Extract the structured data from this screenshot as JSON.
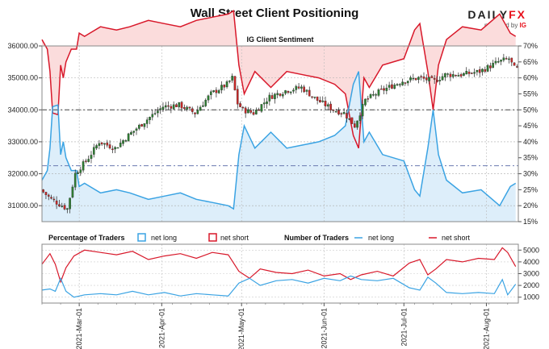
{
  "header": {
    "title": "Wall Street Client Positioning",
    "brand_prefix": "DAILY",
    "brand_suffix": "FX",
    "provided_by": "provided by",
    "provided_by_brand": "IG"
  },
  "chart_data": [
    {
      "type": "candlestick",
      "title": "IG Client Sentiment",
      "y_left_ticks": [
        "31000.00",
        "32000.00",
        "33000.00",
        "34000.00",
        "35000.00",
        "36000.00"
      ],
      "ylim_left": [
        30500,
        36000
      ],
      "y_right_ticks": [
        "15%",
        "20%",
        "25%",
        "30%",
        "35%",
        "40%",
        "45%",
        "50%",
        "55%",
        "60%",
        "65%",
        "70%"
      ],
      "ylim_right": [
        15,
        70
      ],
      "x_ticks": [
        "2021-Mar-01",
        "2021-Apr-01",
        "2021-May-01",
        "2021-Jun-01",
        "2021-Jul-01",
        "2021-Aug-01"
      ],
      "reference_lines": {
        "price": 34000,
        "percent": 50,
        "percent_secondary": 32.5
      },
      "price_keypoints": [
        [
          0,
          31500
        ],
        [
          4,
          31200
        ],
        [
          8,
          31000
        ],
        [
          10,
          30900
        ],
        [
          13,
          32000
        ],
        [
          18,
          32500
        ],
        [
          22,
          33000
        ],
        [
          28,
          32800
        ],
        [
          33,
          33200
        ],
        [
          40,
          33700
        ],
        [
          46,
          34100
        ],
        [
          52,
          34150
        ],
        [
          58,
          33900
        ],
        [
          64,
          34500
        ],
        [
          70,
          34800
        ],
        [
          72,
          35000
        ],
        [
          74,
          34200
        ],
        [
          76,
          34000
        ],
        [
          80,
          33900
        ],
        [
          86,
          34400
        ],
        [
          92,
          34600
        ],
        [
          98,
          34700
        ],
        [
          104,
          34300
        ],
        [
          110,
          34000
        ],
        [
          114,
          33900
        ],
        [
          118,
          33500
        ],
        [
          122,
          34300
        ],
        [
          128,
          34600
        ],
        [
          136,
          34900
        ],
        [
          142,
          35000
        ],
        [
          148,
          34900
        ],
        [
          152,
          35100
        ],
        [
          158,
          35100
        ],
        [
          165,
          35200
        ],
        [
          172,
          35500
        ],
        [
          176,
          35600
        ],
        [
          178,
          35300
        ]
      ],
      "net_long_pct_keypoints": [
        [
          0,
          28
        ],
        [
          2,
          31
        ],
        [
          3,
          38
        ],
        [
          4,
          51
        ],
        [
          6,
          51.5
        ],
        [
          7,
          36
        ],
        [
          8,
          40
        ],
        [
          9,
          35
        ],
        [
          11,
          31
        ],
        [
          13,
          31
        ],
        [
          14,
          26
        ],
        [
          16,
          27
        ],
        [
          18,
          26
        ],
        [
          22,
          24
        ],
        [
          28,
          25
        ],
        [
          33,
          24
        ],
        [
          40,
          22
        ],
        [
          46,
          23
        ],
        [
          52,
          24
        ],
        [
          58,
          22
        ],
        [
          64,
          21
        ],
        [
          70,
          20
        ],
        [
          72,
          19
        ],
        [
          74,
          36
        ],
        [
          76,
          45
        ],
        [
          80,
          38
        ],
        [
          86,
          43
        ],
        [
          92,
          38
        ],
        [
          98,
          39
        ],
        [
          104,
          40
        ],
        [
          110,
          42
        ],
        [
          114,
          45
        ],
        [
          117,
          58
        ],
        [
          119,
          62
        ],
        [
          121,
          40
        ],
        [
          123,
          43
        ],
        [
          128,
          36
        ],
        [
          136,
          34
        ],
        [
          140,
          25
        ],
        [
          142,
          23
        ],
        [
          145,
          38
        ],
        [
          147,
          50
        ],
        [
          149,
          36
        ],
        [
          152,
          28
        ],
        [
          158,
          24
        ],
        [
          165,
          25
        ],
        [
          172,
          20
        ],
        [
          176,
          26
        ],
        [
          178,
          27
        ]
      ],
      "net_short_pct_keypoints": [
        [
          0,
          72
        ],
        [
          2,
          69
        ],
        [
          3,
          62
        ],
        [
          4,
          49
        ],
        [
          6,
          48.5
        ],
        [
          7,
          64
        ],
        [
          8,
          60
        ],
        [
          9,
          65
        ],
        [
          11,
          69
        ],
        [
          13,
          69
        ],
        [
          14,
          74
        ],
        [
          16,
          73
        ],
        [
          18,
          74
        ],
        [
          22,
          76
        ],
        [
          28,
          75
        ],
        [
          33,
          76
        ],
        [
          40,
          78
        ],
        [
          46,
          77
        ],
        [
          52,
          76
        ],
        [
          58,
          78
        ],
        [
          64,
          79
        ],
        [
          70,
          80
        ],
        [
          72,
          81
        ],
        [
          74,
          64
        ],
        [
          76,
          55
        ],
        [
          80,
          62
        ],
        [
          86,
          57
        ],
        [
          92,
          62
        ],
        [
          98,
          61
        ],
        [
          104,
          60
        ],
        [
          110,
          58
        ],
        [
          114,
          55
        ],
        [
          117,
          42
        ],
        [
          119,
          38
        ],
        [
          121,
          60
        ],
        [
          123,
          57
        ],
        [
          128,
          64
        ],
        [
          136,
          66
        ],
        [
          140,
          75
        ],
        [
          142,
          77
        ],
        [
          145,
          62
        ],
        [
          147,
          50
        ],
        [
          149,
          64
        ],
        [
          152,
          72
        ],
        [
          158,
          76
        ],
        [
          165,
          75
        ],
        [
          172,
          80
        ],
        [
          176,
          74
        ],
        [
          178,
          73
        ]
      ]
    },
    {
      "type": "line",
      "legend_pct_title": "Percentage of Traders",
      "legend_num_title": "Number of Traders",
      "legend_net_long": "net long",
      "legend_net_short": "net short",
      "y_ticks": [
        "1000",
        "2000",
        "3000",
        "4000",
        "5000"
      ],
      "ylim": [
        500,
        5500
      ],
      "x_ticks": [
        "2021-Mar-01",
        "2021-Apr-01",
        "2021-May-01",
        "2021-Jun-01",
        "2021-Jul-01",
        "2021-Aug-01"
      ],
      "net_long_count_keypoints": [
        [
          0,
          1600
        ],
        [
          3,
          1700
        ],
        [
          5,
          1500
        ],
        [
          7,
          2600
        ],
        [
          9,
          1500
        ],
        [
          12,
          1000
        ],
        [
          16,
          1200
        ],
        [
          22,
          1300
        ],
        [
          28,
          1200
        ],
        [
          34,
          1500
        ],
        [
          40,
          1200
        ],
        [
          46,
          1400
        ],
        [
          52,
          1100
        ],
        [
          58,
          1300
        ],
        [
          64,
          1200
        ],
        [
          70,
          1100
        ],
        [
          74,
          2200
        ],
        [
          78,
          2600
        ],
        [
          82,
          2000
        ],
        [
          88,
          2400
        ],
        [
          94,
          2500
        ],
        [
          100,
          2200
        ],
        [
          106,
          2600
        ],
        [
          112,
          2400
        ],
        [
          116,
          2800
        ],
        [
          120,
          2500
        ],
        [
          126,
          2400
        ],
        [
          132,
          2600
        ],
        [
          138,
          1800
        ],
        [
          142,
          1600
        ],
        [
          145,
          2700
        ],
        [
          148,
          2200
        ],
        [
          152,
          1400
        ],
        [
          158,
          1300
        ],
        [
          164,
          1400
        ],
        [
          170,
          1300
        ],
        [
          173,
          2500
        ],
        [
          175,
          1200
        ],
        [
          178,
          2100
        ]
      ],
      "net_short_count_keypoints": [
        [
          0,
          3800
        ],
        [
          3,
          4700
        ],
        [
          5,
          3800
        ],
        [
          7,
          2300
        ],
        [
          9,
          3500
        ],
        [
          12,
          4500
        ],
        [
          16,
          5000
        ],
        [
          22,
          4800
        ],
        [
          28,
          4600
        ],
        [
          34,
          4900
        ],
        [
          40,
          4200
        ],
        [
          46,
          4500
        ],
        [
          52,
          4700
        ],
        [
          58,
          4300
        ],
        [
          64,
          4800
        ],
        [
          70,
          4600
        ],
        [
          74,
          3200
        ],
        [
          78,
          2600
        ],
        [
          82,
          3400
        ],
        [
          88,
          3100
        ],
        [
          94,
          3000
        ],
        [
          100,
          3300
        ],
        [
          106,
          2800
        ],
        [
          112,
          3000
        ],
        [
          116,
          2500
        ],
        [
          120,
          2900
        ],
        [
          126,
          3200
        ],
        [
          132,
          2800
        ],
        [
          138,
          3900
        ],
        [
          142,
          4200
        ],
        [
          145,
          2900
        ],
        [
          148,
          3400
        ],
        [
          152,
          4200
        ],
        [
          158,
          4000
        ],
        [
          164,
          4300
        ],
        [
          170,
          4200
        ],
        [
          173,
          5200
        ],
        [
          175,
          4800
        ],
        [
          178,
          3600
        ]
      ]
    }
  ]
}
